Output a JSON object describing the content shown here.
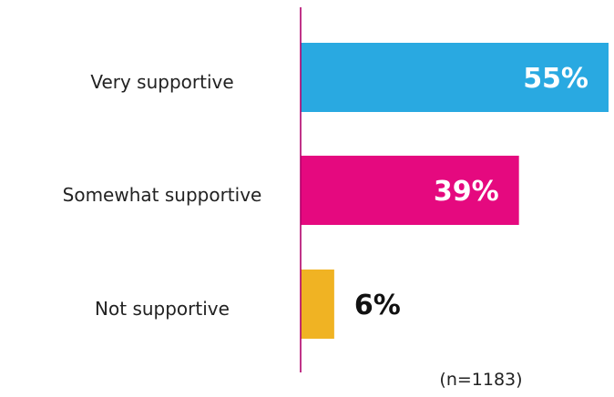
{
  "chart_data": {
    "type": "bar",
    "orientation": "horizontal",
    "categories": [
      "Very supportive",
      "Somewhat supportive",
      "Not supportive"
    ],
    "values": [
      55,
      39,
      6
    ],
    "value_labels": [
      "55%",
      "39%",
      "6%"
    ],
    "colors": [
      "#29a9e1",
      "#e5097f",
      "#f0b323"
    ],
    "value_label_colors": [
      "#ffffff",
      "#ffffff",
      "#111111"
    ],
    "axis_color": "#b0006a",
    "xlim": [
      0,
      55
    ],
    "grid": false,
    "legend": "none",
    "title": "",
    "xlabel": "",
    "ylabel": ""
  },
  "footnote": "(n=1183)"
}
